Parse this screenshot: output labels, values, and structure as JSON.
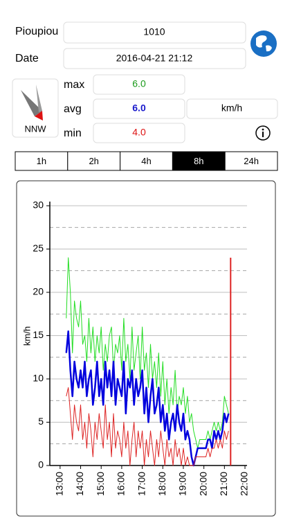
{
  "station": {
    "label": "Pioupiou",
    "value": "1010"
  },
  "date": {
    "label": "Date",
    "value": "2016-04-21 21:12"
  },
  "direction": "NNW",
  "stats": {
    "max": {
      "label": "max",
      "value": "6.0"
    },
    "avg": {
      "label": "avg",
      "value": "6.0"
    },
    "min": {
      "label": "min",
      "value": "4.0"
    },
    "unit": "km/h"
  },
  "ranges": [
    "1h",
    "2h",
    "4h",
    "8h",
    "24h"
  ],
  "selected_range": 3,
  "chart_data": {
    "type": "line",
    "y_label": "km/h",
    "xlim": [
      12.5,
      22.1
    ],
    "xticks": [
      {
        "value": 13,
        "label": "13:00"
      },
      {
        "value": 14,
        "label": "14:00"
      },
      {
        "value": 15,
        "label": "15:00"
      },
      {
        "value": 16,
        "label": "16:00"
      },
      {
        "value": 17,
        "label": "17:00"
      },
      {
        "value": 18,
        "label": "18:00"
      },
      {
        "value": 19,
        "label": "19:00"
      },
      {
        "value": 20,
        "label": "20:00"
      },
      {
        "value": 21,
        "label": "21:00"
      },
      {
        "value": 22,
        "label": "22:00"
      }
    ],
    "ylim": [
      0,
      30
    ],
    "yticks": [
      0,
      5,
      10,
      15,
      20,
      25,
      30
    ],
    "yminor": [
      2.5,
      7.5,
      12.5,
      17.5,
      22.5,
      27.5
    ],
    "grid": true,
    "series": [
      {
        "color": "#22dd22",
        "width": 1,
        "x": [
          13.3,
          13.4,
          13.5,
          13.6,
          13.7,
          13.8,
          13.9,
          14.0,
          14.1,
          14.2,
          14.3,
          14.4,
          14.5,
          14.6,
          14.7,
          14.8,
          14.9,
          15.0,
          15.1,
          15.2,
          15.3,
          15.4,
          15.5,
          15.6,
          15.7,
          15.8,
          15.9,
          16.0,
          16.1,
          16.2,
          16.3,
          16.4,
          16.5,
          16.6,
          16.7,
          16.8,
          16.9,
          17.0,
          17.1,
          17.2,
          17.3,
          17.4,
          17.5,
          17.6,
          17.7,
          17.8,
          17.9,
          18.0,
          18.1,
          18.2,
          18.3,
          18.4,
          18.5,
          18.6,
          18.7,
          18.8,
          18.9,
          19.0,
          19.1,
          19.2,
          19.3,
          19.4,
          19.5,
          19.6,
          19.7,
          19.8,
          19.9,
          20.0,
          20.1,
          20.2,
          20.3,
          20.4,
          20.5,
          20.6,
          20.7,
          20.8,
          20.9,
          21.0,
          21.1,
          21.2
        ],
        "values": [
          17,
          24,
          20,
          13,
          19,
          17,
          16,
          19,
          14,
          15,
          12,
          17,
          13,
          16,
          12,
          15,
          13,
          16,
          11,
          14,
          12,
          15,
          16,
          11,
          14,
          13,
          15,
          11,
          17,
          12,
          14,
          10,
          16,
          11,
          13,
          15,
          10,
          16,
          11,
          13,
          9,
          14,
          10,
          12,
          9,
          13,
          8,
          12,
          7,
          10,
          6,
          9,
          7,
          11,
          6,
          8,
          7,
          9,
          6,
          8,
          5,
          6,
          4,
          3,
          2,
          3,
          3,
          3,
          3,
          4,
          3,
          4,
          5,
          4,
          5,
          4,
          5,
          8,
          7,
          6
        ]
      },
      {
        "color": "#0000dd",
        "width": 2.5,
        "x": [
          13.3,
          13.4,
          13.5,
          13.6,
          13.7,
          13.8,
          13.9,
          14.0,
          14.1,
          14.2,
          14.3,
          14.4,
          14.5,
          14.6,
          14.7,
          14.8,
          14.9,
          15.0,
          15.1,
          15.2,
          15.3,
          15.4,
          15.5,
          15.6,
          15.7,
          15.8,
          15.9,
          16.0,
          16.1,
          16.2,
          16.3,
          16.4,
          16.5,
          16.6,
          16.7,
          16.8,
          16.9,
          17.0,
          17.1,
          17.2,
          17.3,
          17.4,
          17.5,
          17.6,
          17.7,
          17.8,
          17.9,
          18.0,
          18.1,
          18.2,
          18.3,
          18.4,
          18.5,
          18.6,
          18.7,
          18.8,
          18.9,
          19.0,
          19.1,
          19.2,
          19.3,
          19.4,
          19.5,
          19.6,
          19.7,
          19.8,
          19.9,
          20.0,
          20.1,
          20.2,
          20.3,
          20.4,
          20.5,
          20.6,
          20.7,
          20.8,
          20.9,
          21.0,
          21.1,
          21.2
        ],
        "values": [
          13,
          15.5,
          11,
          8,
          12,
          10,
          9,
          11,
          9,
          12,
          8,
          10,
          11,
          7,
          9,
          12,
          8,
          10,
          7,
          12,
          9,
          11,
          8,
          12,
          7,
          10,
          9,
          8,
          12,
          6,
          10,
          9,
          11,
          7,
          10,
          8,
          9,
          11,
          6,
          9,
          5,
          8,
          10,
          6,
          7,
          9,
          5,
          7,
          4,
          6,
          3,
          5,
          6,
          4,
          7,
          5,
          4,
          6,
          3,
          4,
          3,
          1,
          0,
          1,
          2,
          2,
          2,
          2,
          2,
          3,
          3,
          2,
          4,
          3,
          4,
          3,
          4,
          6,
          5,
          6
        ]
      },
      {
        "color": "#dd2222",
        "width": 1,
        "x": [
          13.3,
          13.4,
          13.5,
          13.6,
          13.7,
          13.8,
          13.9,
          14.0,
          14.1,
          14.2,
          14.3,
          14.4,
          14.5,
          14.6,
          14.7,
          14.8,
          14.9,
          15.0,
          15.1,
          15.2,
          15.3,
          15.4,
          15.5,
          15.6,
          15.7,
          15.8,
          15.9,
          16.0,
          16.1,
          16.2,
          16.3,
          16.4,
          16.5,
          16.6,
          16.7,
          16.8,
          16.9,
          17.0,
          17.1,
          17.2,
          17.3,
          17.4,
          17.5,
          17.6,
          17.7,
          17.8,
          17.9,
          18.0,
          18.1,
          18.2,
          18.3,
          18.4,
          18.5,
          18.6,
          18.7,
          18.8,
          18.9,
          19.0,
          19.1,
          19.2,
          19.3,
          19.4,
          19.5,
          19.6,
          19.7,
          19.8,
          19.9,
          20.0,
          20.1,
          20.2,
          20.3,
          20.4,
          20.5,
          20.6,
          20.7,
          20.8,
          20.9,
          21.0,
          21.1,
          21.2
        ],
        "values": [
          8,
          9,
          6,
          3,
          7,
          5,
          4,
          7,
          3,
          5,
          2,
          6,
          4,
          1,
          5,
          3,
          6,
          4,
          2,
          7,
          3,
          5,
          1,
          6,
          2,
          4,
          3,
          1,
          5,
          2,
          4,
          0,
          3,
          5,
          1,
          4,
          2,
          4,
          0,
          3,
          1,
          4,
          2,
          0,
          3,
          1,
          4,
          2,
          0,
          3,
          1,
          2,
          0,
          3,
          1,
          2,
          0,
          2,
          0,
          1,
          0,
          0,
          0,
          1,
          1,
          1,
          1,
          1,
          1,
          2,
          1,
          2,
          2,
          3,
          2,
          3,
          2,
          4,
          3,
          4
        ]
      },
      {
        "color": "#dd2222",
        "width": 2,
        "x": [
          21.3,
          21.3
        ],
        "values": [
          0,
          24
        ]
      }
    ]
  }
}
